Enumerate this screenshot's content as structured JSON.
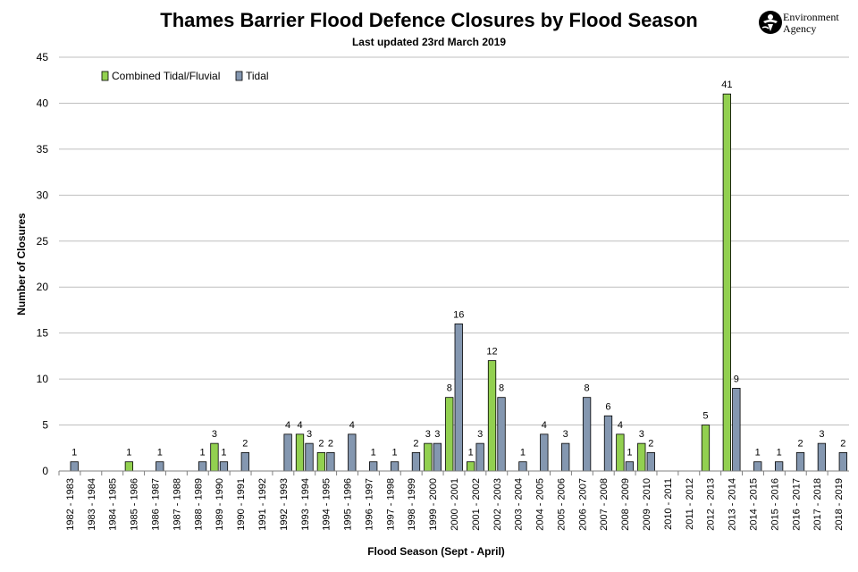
{
  "header": {
    "title": "Thames Barrier Flood Defence Closures by Flood Season",
    "subtitle": "Last updated  23rd March 2019",
    "logo_line1": "Environment",
    "logo_line2": "Agency"
  },
  "colors": {
    "combined": "#92d050",
    "tidal": "#8497b0",
    "bar_stroke": "#000000",
    "grid": "#bfbfbf"
  },
  "chart_data": {
    "type": "bar",
    "title": "Thames Barrier Flood Defence Closures by Flood Season",
    "subtitle": "Last updated  23rd March 2019",
    "xlabel": "Flood Season (Sept - April)",
    "ylabel": "Number of Closures",
    "ylim": [
      0,
      45
    ],
    "yticks": [
      0,
      5,
      10,
      15,
      20,
      25,
      30,
      35,
      40,
      45
    ],
    "grid": true,
    "legend_position": "top-left",
    "categories": [
      "1982 - 1983",
      "1983 - 1984",
      "1984 - 1985",
      "1985 - 1986",
      "1986 - 1987",
      "1987 - 1988",
      "1988 - 1989",
      "1989 - 1990",
      "1990 - 1991",
      "1991 - 1992",
      "1992 - 1993",
      "1993 - 1994",
      "1994 - 1995",
      "1995 - 1996",
      "1996 - 1997",
      "1997 - 1998",
      "1998 - 1999",
      "1999 - 2000",
      "2000 - 2001",
      "2001 - 2002",
      "2002 - 2003",
      "2003 - 2004",
      "2004 - 2005",
      "2005 - 2006",
      "2006 - 2007",
      "2007 - 2008",
      "2008 - 2009",
      "2009 - 2010",
      "2010 - 2011",
      "2011 - 2012",
      "2012 - 2013",
      "2013 - 2014",
      "2014 - 2015",
      "2015 - 2016",
      "2016 - 2017",
      "2017 - 2018",
      "2018 - 2019"
    ],
    "series": [
      {
        "name": "Combined Tidal/Fluvial",
        "color": "#92d050",
        "values": [
          0,
          0,
          0,
          1,
          0,
          0,
          0,
          3,
          0,
          0,
          0,
          4,
          2,
          0,
          0,
          0,
          0,
          3,
          8,
          1,
          12,
          0,
          0,
          0,
          0,
          0,
          4,
          3,
          0,
          0,
          5,
          41,
          0,
          0,
          0,
          0,
          0
        ]
      },
      {
        "name": "Tidal",
        "color": "#8497b0",
        "values": [
          1,
          0,
          0,
          0,
          1,
          0,
          1,
          1,
          2,
          0,
          4,
          3,
          2,
          4,
          1,
          1,
          2,
          3,
          16,
          3,
          8,
          1,
          4,
          3,
          8,
          6,
          1,
          2,
          0,
          0,
          0,
          9,
          1,
          1,
          2,
          3,
          2
        ]
      }
    ]
  }
}
